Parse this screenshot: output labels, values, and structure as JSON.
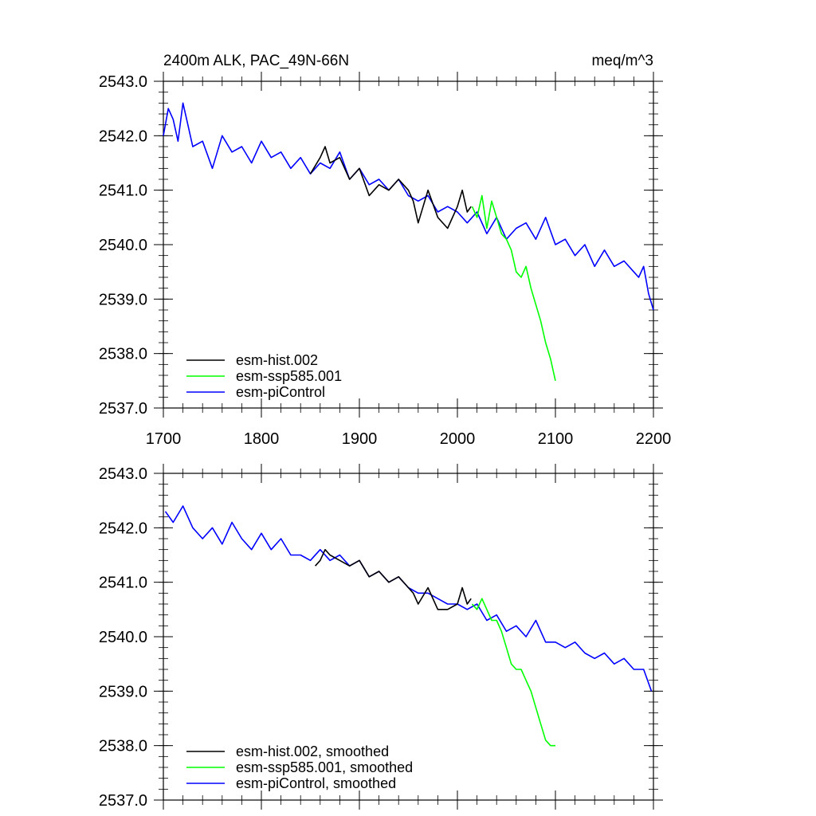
{
  "chart_data": [
    {
      "type": "line",
      "title_left": "2400m ALK, PAC_49N-66N",
      "title_right": "meq/m^3",
      "xlim": [
        1700,
        2200
      ],
      "ylim": [
        2537.0,
        2543.0
      ],
      "x_ticks": [
        1700,
        1800,
        1900,
        2000,
        2100,
        2200
      ],
      "x_tick_labels": [
        "1700",
        "1800",
        "1900",
        "2000",
        "2100",
        "2200"
      ],
      "y_ticks": [
        2537.0,
        2538.0,
        2539.0,
        2540.0,
        2541.0,
        2542.0,
        2543.0
      ],
      "y_tick_labels": [
        "2537.0",
        "2538.0",
        "2539.0",
        "2540.0",
        "2541.0",
        "2542.0",
        "2543.0"
      ],
      "show_x_labels": true,
      "legend": [
        "esm-hist.002",
        "esm-ssp585.001",
        "esm-piControl"
      ],
      "series": [
        {
          "name": "esm-piControl",
          "color": "#0000ff",
          "x": [
            1700,
            1705,
            1710,
            1715,
            1720,
            1725,
            1730,
            1740,
            1750,
            1760,
            1770,
            1780,
            1790,
            1800,
            1810,
            1820,
            1830,
            1840,
            1850,
            1860,
            1870,
            1880,
            1890,
            1900,
            1910,
            1920,
            1930,
            1940,
            1950,
            1960,
            1970,
            1980,
            1990,
            2000,
            2010,
            2020,
            2030,
            2040,
            2050,
            2060,
            2070,
            2080,
            2090,
            2100,
            2110,
            2120,
            2130,
            2140,
            2150,
            2160,
            2170,
            2180,
            2185,
            2190,
            2195,
            2200
          ],
          "y": [
            2542.0,
            2542.5,
            2542.3,
            2541.9,
            2542.6,
            2542.2,
            2541.8,
            2541.9,
            2541.4,
            2542.0,
            2541.7,
            2541.8,
            2541.5,
            2541.9,
            2541.6,
            2541.7,
            2541.4,
            2541.6,
            2541.3,
            2541.5,
            2541.4,
            2541.7,
            2541.2,
            2541.4,
            2541.1,
            2541.2,
            2541.0,
            2541.2,
            2540.9,
            2540.8,
            2540.9,
            2540.6,
            2540.7,
            2540.6,
            2540.4,
            2540.6,
            2540.2,
            2540.5,
            2540.1,
            2540.3,
            2540.4,
            2540.1,
            2540.5,
            2540.0,
            2540.1,
            2539.8,
            2540.0,
            2539.6,
            2539.9,
            2539.6,
            2539.7,
            2539.5,
            2539.4,
            2539.6,
            2539.1,
            2538.8
          ]
        },
        {
          "name": "esm-hist.002",
          "color": "#000000",
          "x": [
            1850,
            1860,
            1865,
            1870,
            1880,
            1890,
            1900,
            1910,
            1920,
            1930,
            1940,
            1950,
            1955,
            1960,
            1970,
            1980,
            1990,
            2000,
            2005,
            2010,
            2014
          ],
          "y": [
            2541.3,
            2541.6,
            2541.8,
            2541.5,
            2541.6,
            2541.2,
            2541.4,
            2540.9,
            2541.1,
            2541.0,
            2541.2,
            2541.0,
            2540.8,
            2540.4,
            2541.0,
            2540.5,
            2540.3,
            2540.7,
            2541.0,
            2540.6,
            2540.7
          ]
        },
        {
          "name": "esm-ssp585.001",
          "color": "#00ff00",
          "x": [
            2015,
            2020,
            2025,
            2030,
            2035,
            2040,
            2045,
            2050,
            2055,
            2060,
            2065,
            2070,
            2075,
            2080,
            2085,
            2090,
            2095,
            2100
          ],
          "y": [
            2540.7,
            2540.5,
            2540.9,
            2540.3,
            2540.8,
            2540.5,
            2540.2,
            2540.1,
            2539.9,
            2539.5,
            2539.4,
            2539.6,
            2539.2,
            2538.9,
            2538.6,
            2538.2,
            2537.9,
            2537.5
          ]
        }
      ]
    },
    {
      "type": "line",
      "xlim": [
        1700,
        2200
      ],
      "ylim": [
        2537.0,
        2543.0
      ],
      "x_ticks": [
        1700,
        1800,
        1900,
        2000,
        2100,
        2200
      ],
      "y_ticks": [
        2537.0,
        2538.0,
        2539.0,
        2540.0,
        2541.0,
        2542.0,
        2543.0
      ],
      "y_tick_labels": [
        "2537.0",
        "2538.0",
        "2539.0",
        "2540.0",
        "2541.0",
        "2542.0",
        "2543.0"
      ],
      "show_x_labels": false,
      "legend": [
        "esm-hist.002, smoothed",
        "esm-ssp585.001, smoothed",
        "esm-piControl, smoothed"
      ],
      "series": [
        {
          "name": "esm-piControl, smoothed",
          "color": "#0000ff",
          "x": [
            1702,
            1710,
            1720,
            1730,
            1740,
            1750,
            1760,
            1770,
            1780,
            1790,
            1800,
            1810,
            1820,
            1830,
            1840,
            1850,
            1860,
            1870,
            1880,
            1890,
            1900,
            1910,
            1920,
            1930,
            1940,
            1950,
            1960,
            1970,
            1980,
            1990,
            2000,
            2010,
            2020,
            2030,
            2040,
            2050,
            2060,
            2070,
            2080,
            2090,
            2100,
            2110,
            2120,
            2130,
            2140,
            2150,
            2160,
            2170,
            2180,
            2190,
            2198
          ],
          "y": [
            2542.3,
            2542.1,
            2542.4,
            2542.0,
            2541.8,
            2542.0,
            2541.7,
            2542.1,
            2541.8,
            2541.6,
            2541.9,
            2541.6,
            2541.8,
            2541.5,
            2541.5,
            2541.4,
            2541.6,
            2541.4,
            2541.5,
            2541.3,
            2541.4,
            2541.1,
            2541.2,
            2541.0,
            2541.1,
            2540.9,
            2540.8,
            2540.8,
            2540.7,
            2540.6,
            2540.6,
            2540.5,
            2540.6,
            2540.3,
            2540.4,
            2540.1,
            2540.2,
            2540.0,
            2540.3,
            2539.9,
            2539.9,
            2539.8,
            2539.9,
            2539.7,
            2539.6,
            2539.7,
            2539.5,
            2539.6,
            2539.4,
            2539.4,
            2539.0
          ]
        },
        {
          "name": "esm-hist.002, smoothed",
          "color": "#000000",
          "x": [
            1855,
            1860,
            1865,
            1870,
            1880,
            1890,
            1900,
            1910,
            1920,
            1930,
            1940,
            1950,
            1955,
            1960,
            1970,
            1980,
            1990,
            2000,
            2005,
            2010,
            2014
          ],
          "y": [
            2541.3,
            2541.4,
            2541.6,
            2541.5,
            2541.4,
            2541.3,
            2541.4,
            2541.1,
            2541.2,
            2541.0,
            2541.1,
            2540.9,
            2540.8,
            2540.6,
            2540.9,
            2540.5,
            2540.5,
            2540.6,
            2540.9,
            2540.6,
            2540.7
          ]
        },
        {
          "name": "esm-ssp585.001, smoothed",
          "color": "#00ff00",
          "x": [
            2015,
            2020,
            2025,
            2030,
            2035,
            2040,
            2045,
            2050,
            2055,
            2060,
            2065,
            2070,
            2075,
            2080,
            2085,
            2090,
            2095,
            2100
          ],
          "y": [
            2540.6,
            2540.5,
            2540.7,
            2540.5,
            2540.3,
            2540.3,
            2540.1,
            2539.8,
            2539.5,
            2539.4,
            2539.4,
            2539.2,
            2539.0,
            2538.7,
            2538.4,
            2538.1,
            2538.0,
            2538.0
          ]
        }
      ]
    }
  ]
}
